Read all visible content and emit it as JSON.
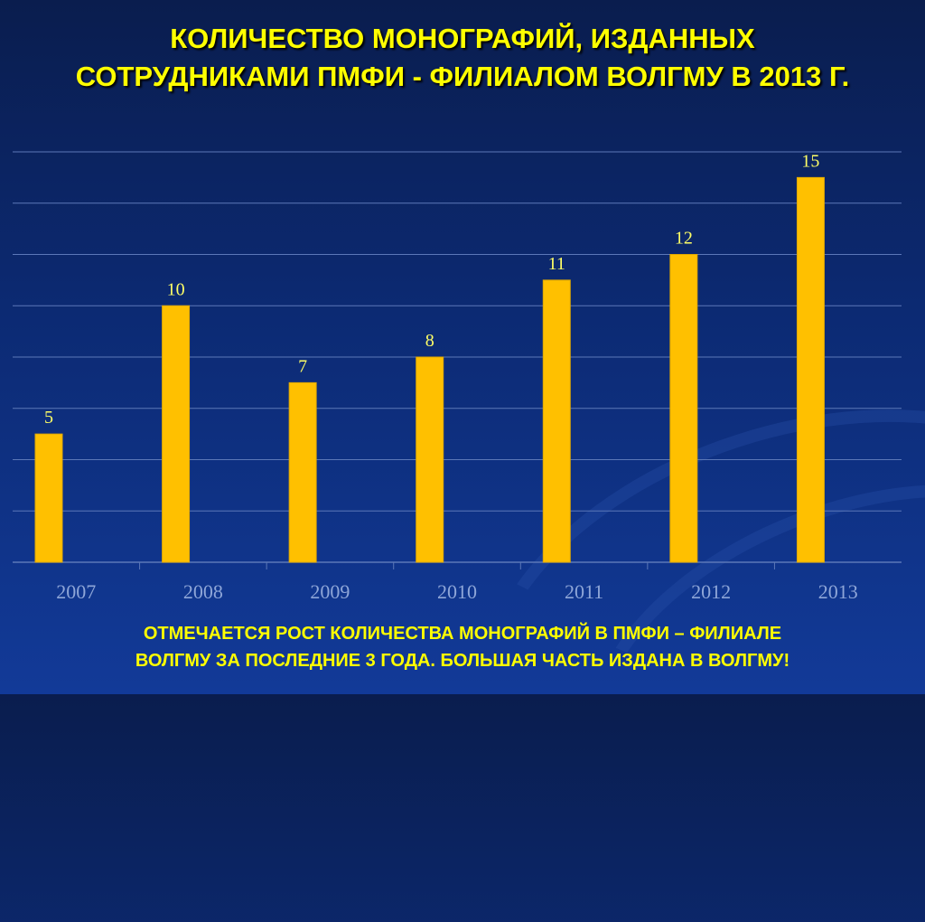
{
  "title": {
    "line1": "КОЛИЧЕСТВО МОНОГРАФИЙ, ИЗДАННЫХ",
    "line2": "СОТРУДНИКАМИ ПМФИ - ФИЛИАЛОМ ВОЛГМУ В 2013 Г."
  },
  "footer": {
    "line1": "ОТМЕЧАЕТСЯ РОСТ КОЛИЧЕСТВА МОНОГРАФИЙ  В ПМФИ – ФИЛИАЛЕ",
    "line2": "ВОЛГМУ ЗА ПОСЛЕДНИЕ  3 ГОДА. БОЛЬШАЯ ЧАСТЬ ИЗДАНА В ВОЛГМУ!"
  },
  "colors": {
    "bar": "#ffc000",
    "bar_stroke": "#e0a800",
    "data_label": "#ffff66",
    "tick_label": "#8ea6d8",
    "grid": "#5c78b8"
  },
  "chart_data": {
    "type": "bar",
    "categories": [
      "2007",
      "2008",
      "2009",
      "2010",
      "2011",
      "2012",
      "2013"
    ],
    "values": [
      5,
      10,
      7,
      8,
      11,
      12,
      15
    ],
    "data_labels": [
      "5",
      "10",
      "7",
      "8",
      "11",
      "12",
      "15"
    ],
    "ylim": [
      0,
      16
    ],
    "y_gridline_step": 2,
    "grid": true,
    "y_axis_labels_shown": false,
    "legend": "none"
  }
}
